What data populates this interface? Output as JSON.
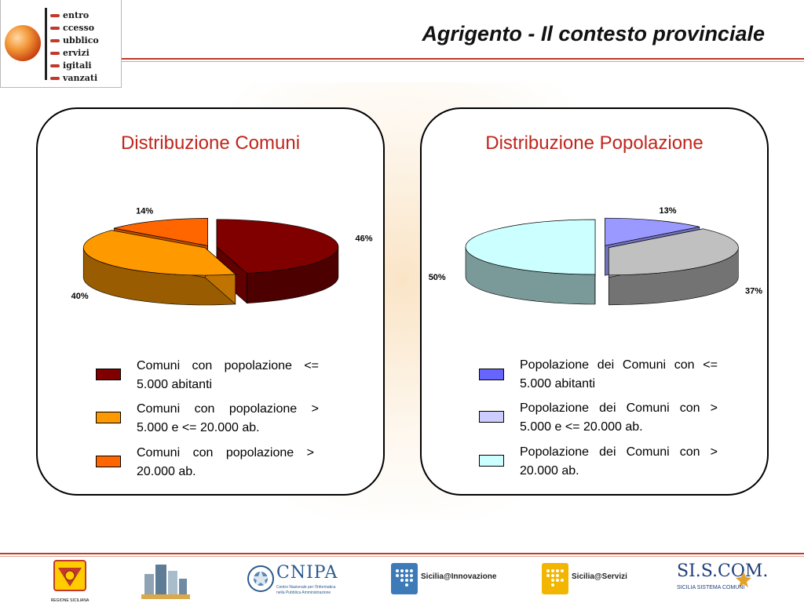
{
  "header": {
    "title": "Agrigento - Il contesto provinciale",
    "logo_words": [
      "entro",
      "ccesso",
      "ubblico",
      "ervizi",
      "igitali",
      "vanzati"
    ]
  },
  "left_panel": {
    "title": "Distribuzione Comuni",
    "chart_data": {
      "type": "pie",
      "values": [
        46,
        40,
        14
      ],
      "labels": [
        "46%",
        "40%",
        "14%"
      ],
      "colors": [
        "#800000",
        "#ff9900",
        "#ff6600"
      ],
      "legend": [
        "Comuni con popolazione <= 5.000 abitanti",
        "Comuni con popolazione > 5.000 e <= 20.000 ab.",
        "Comuni con popolazione > 20.000 ab."
      ]
    },
    "legend": [
      {
        "text": "Comuni con popolazione <= 5.000 abitanti",
        "color": "#800000"
      },
      {
        "text": "Comuni con popolazione > 5.000 e <= 20.000 ab.",
        "color": "#ff9900"
      },
      {
        "text": "Comuni con popolazione > 20.000 ab.",
        "color": "#ff6600"
      }
    ]
  },
  "right_panel": {
    "title": "Distribuzione Popolazione",
    "chart_data": {
      "type": "pie",
      "values": [
        13,
        37,
        50
      ],
      "labels": [
        "13%",
        "37%",
        "50%"
      ],
      "colors": [
        "#9999ff",
        "#c0c0c0",
        "#ccffff"
      ],
      "legend": [
        "Popolazione dei Comuni con <= 5.000 abitanti",
        "Popolazione dei Comuni con > 5.000 e <= 20.000 ab.",
        "Popolazione dei Comuni con > 20.000 ab."
      ]
    },
    "legend": [
      {
        "text": "Popolazione dei Comuni con <= 5.000 abitanti",
        "color": "#6666ff"
      },
      {
        "text": "Popolazione dei Comuni con > 5.000 e <= 20.000 ab.",
        "color": "#ccccff"
      },
      {
        "text": "Popolazione dei Comuni con > 20.000 ab.",
        "color": "#ccffff"
      }
    ]
  },
  "footer": {
    "regione_label": "REGIONE SICILIANA",
    "cnipa_name": "CNIPA",
    "cnipa_sub1": "Centro Nazionale per l'Informatica",
    "cnipa_sub2": "nella Pubblica Amministrazione",
    "sicilia_innovazione": "Sicilia@Innovazione",
    "sicilia_servizi": "Sicilia@Servizi",
    "siscom_name": "SI.S.COM.",
    "siscom_sub": "SICILIA SISTEMA COMUNI"
  }
}
